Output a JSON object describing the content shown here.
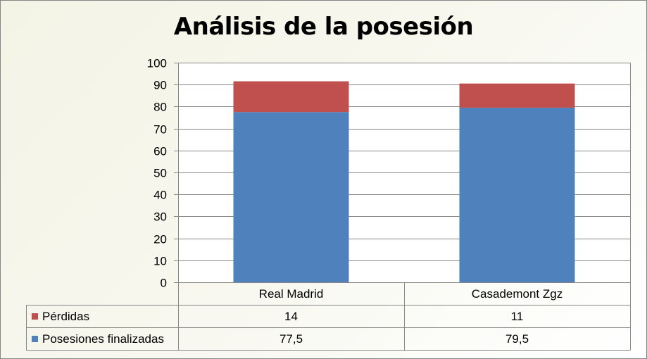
{
  "chart_data": {
    "type": "bar",
    "stacked": true,
    "title": "Análisis de la posesión",
    "xlabel": "",
    "ylabel": "",
    "ylim": [
      0,
      100
    ],
    "yticks": [
      0,
      10,
      20,
      30,
      40,
      50,
      60,
      70,
      80,
      90,
      100
    ],
    "categories": [
      "Real Madrid",
      "Casademont Zgz"
    ],
    "series": [
      {
        "name": "Posesiones finalizadas",
        "values": [
          77.5,
          79.5
        ],
        "labels": [
          "77,5",
          "79,5"
        ],
        "color": "#4f81bd"
      },
      {
        "name": "Pérdidas",
        "values": [
          14,
          11
        ],
        "labels": [
          "14",
          "11"
        ],
        "color": "#c0504d"
      }
    ],
    "grid": true,
    "legend": "data-table",
    "data_table": true
  }
}
